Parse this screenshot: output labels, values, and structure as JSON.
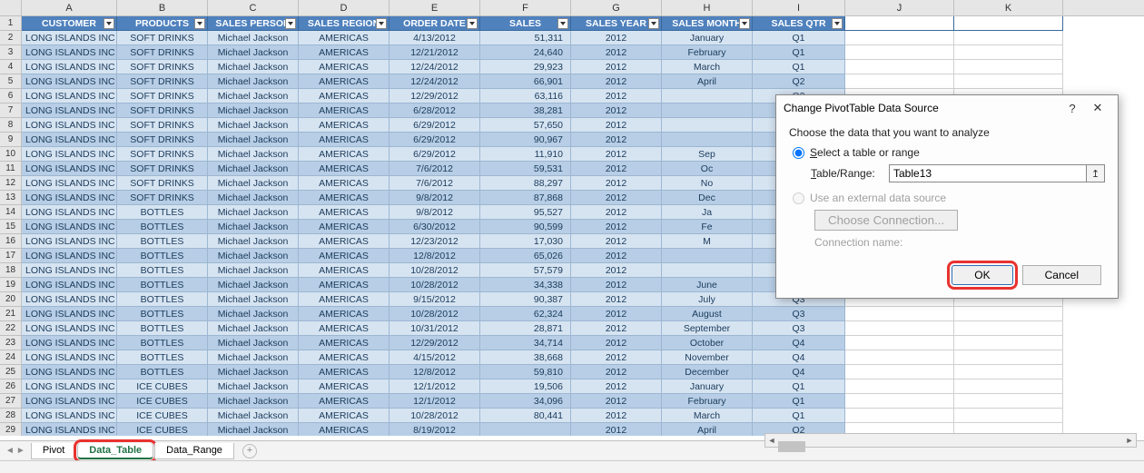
{
  "columnLetters": [
    "A",
    "B",
    "C",
    "D",
    "E",
    "F",
    "G",
    "H",
    "I",
    "J",
    "K"
  ],
  "columnWidths": {
    "A": 105,
    "B": 100,
    "C": 100,
    "D": 100,
    "E": 100,
    "F": 100,
    "G": 100,
    "H": 100,
    "I": 102,
    "J": 120,
    "K": 120
  },
  "headers": [
    "CUSTOMER",
    "PRODUCTS",
    "SALES PERSON",
    "SALES REGION",
    "ORDER DATE",
    "SALES",
    "SALES YEAR",
    "SALES MONTH",
    "SALES QTR"
  ],
  "rows": [
    [
      "LONG ISLANDS INC",
      "SOFT DRINKS",
      "Michael Jackson",
      "AMERICAS",
      "4/13/2012",
      "51,311",
      "2012",
      "January",
      "Q1"
    ],
    [
      "LONG ISLANDS INC",
      "SOFT DRINKS",
      "Michael Jackson",
      "AMERICAS",
      "12/21/2012",
      "24,640",
      "2012",
      "February",
      "Q1"
    ],
    [
      "LONG ISLANDS INC",
      "SOFT DRINKS",
      "Michael Jackson",
      "AMERICAS",
      "12/24/2012",
      "29,923",
      "2012",
      "March",
      "Q1"
    ],
    [
      "LONG ISLANDS INC",
      "SOFT DRINKS",
      "Michael Jackson",
      "AMERICAS",
      "12/24/2012",
      "66,901",
      "2012",
      "April",
      "Q2"
    ],
    [
      "LONG ISLANDS INC",
      "SOFT DRINKS",
      "Michael Jackson",
      "AMERICAS",
      "12/29/2012",
      "63,116",
      "2012",
      "",
      "Q2"
    ],
    [
      "LONG ISLANDS INC",
      "SOFT DRINKS",
      "Michael Jackson",
      "AMERICAS",
      "6/28/2012",
      "38,281",
      "2012",
      "",
      "Q2"
    ],
    [
      "LONG ISLANDS INC",
      "SOFT DRINKS",
      "Michael Jackson",
      "AMERICAS",
      "6/29/2012",
      "57,650",
      "2012",
      "",
      "Q3"
    ],
    [
      "LONG ISLANDS INC",
      "SOFT DRINKS",
      "Michael Jackson",
      "AMERICAS",
      "6/29/2012",
      "90,967",
      "2012",
      "",
      "Q3"
    ],
    [
      "LONG ISLANDS INC",
      "SOFT DRINKS",
      "Michael Jackson",
      "AMERICAS",
      "6/29/2012",
      "11,910",
      "2012",
      "Sep",
      "Q3"
    ],
    [
      "LONG ISLANDS INC",
      "SOFT DRINKS",
      "Michael Jackson",
      "AMERICAS",
      "7/6/2012",
      "59,531",
      "2012",
      "Oc",
      "Q4"
    ],
    [
      "LONG ISLANDS INC",
      "SOFT DRINKS",
      "Michael Jackson",
      "AMERICAS",
      "7/6/2012",
      "88,297",
      "2012",
      "No",
      "Q4"
    ],
    [
      "LONG ISLANDS INC",
      "SOFT DRINKS",
      "Michael Jackson",
      "AMERICAS",
      "9/8/2012",
      "87,868",
      "2012",
      "Dec",
      "Q4"
    ],
    [
      "LONG ISLANDS INC",
      "BOTTLES",
      "Michael Jackson",
      "AMERICAS",
      "9/8/2012",
      "95,527",
      "2012",
      "Ja",
      "Q1"
    ],
    [
      "LONG ISLANDS INC",
      "BOTTLES",
      "Michael Jackson",
      "AMERICAS",
      "6/30/2012",
      "90,599",
      "2012",
      "Fe",
      "Q1"
    ],
    [
      "LONG ISLANDS INC",
      "BOTTLES",
      "Michael Jackson",
      "AMERICAS",
      "12/23/2012",
      "17,030",
      "2012",
      "M",
      "Q1"
    ],
    [
      "LONG ISLANDS INC",
      "BOTTLES",
      "Michael Jackson",
      "AMERICAS",
      "12/8/2012",
      "65,026",
      "2012",
      "",
      "Q2"
    ],
    [
      "LONG ISLANDS INC",
      "BOTTLES",
      "Michael Jackson",
      "AMERICAS",
      "10/28/2012",
      "57,579",
      "2012",
      "",
      "Q2"
    ],
    [
      "LONG ISLANDS INC",
      "BOTTLES",
      "Michael Jackson",
      "AMERICAS",
      "10/28/2012",
      "34,338",
      "2012",
      "June",
      "Q2"
    ],
    [
      "LONG ISLANDS INC",
      "BOTTLES",
      "Michael Jackson",
      "AMERICAS",
      "9/15/2012",
      "90,387",
      "2012",
      "July",
      "Q3"
    ],
    [
      "LONG ISLANDS INC",
      "BOTTLES",
      "Michael Jackson",
      "AMERICAS",
      "10/28/2012",
      "62,324",
      "2012",
      "August",
      "Q3"
    ],
    [
      "LONG ISLANDS INC",
      "BOTTLES",
      "Michael Jackson",
      "AMERICAS",
      "10/31/2012",
      "28,871",
      "2012",
      "September",
      "Q3"
    ],
    [
      "LONG ISLANDS INC",
      "BOTTLES",
      "Michael Jackson",
      "AMERICAS",
      "12/29/2012",
      "34,714",
      "2012",
      "October",
      "Q4"
    ],
    [
      "LONG ISLANDS INC",
      "BOTTLES",
      "Michael Jackson",
      "AMERICAS",
      "4/15/2012",
      "38,668",
      "2012",
      "November",
      "Q4"
    ],
    [
      "LONG ISLANDS INC",
      "BOTTLES",
      "Michael Jackson",
      "AMERICAS",
      "12/8/2012",
      "59,810",
      "2012",
      "December",
      "Q4"
    ],
    [
      "LONG ISLANDS INC",
      "ICE CUBES",
      "Michael Jackson",
      "AMERICAS",
      "12/1/2012",
      "19,506",
      "2012",
      "January",
      "Q1"
    ],
    [
      "LONG ISLANDS INC",
      "ICE CUBES",
      "Michael Jackson",
      "AMERICAS",
      "12/1/2012",
      "34,096",
      "2012",
      "February",
      "Q1"
    ],
    [
      "LONG ISLANDS INC",
      "ICE CUBES",
      "Michael Jackson",
      "AMERICAS",
      "10/28/2012",
      "80,441",
      "2012",
      "March",
      "Q1"
    ],
    [
      "LONG ISLANDS INC",
      "ICE CUBES",
      "Michael Jackson",
      "AMERICAS",
      "8/19/2012",
      "",
      "2012",
      "April",
      "Q2"
    ]
  ],
  "numericCols": [
    5
  ],
  "bandColors": {
    "a": "#d6e4f2",
    "b": "#b7cee6"
  },
  "headerBg": "#4f81bd",
  "sheetTabs": {
    "items": [
      "Pivot",
      "Data_Table",
      "Data_Range"
    ],
    "activeIndex": 1,
    "highlightedIndex": 1
  },
  "dialog": {
    "title": "Change PivotTable Data Source",
    "prompt": "Choose the data that you want to analyze",
    "option1": "Select a table or range",
    "rangeLabel": "Table/Range:",
    "rangeValue": "Table13",
    "option2": "Use an external data source",
    "chooseConn": "Choose Connection...",
    "connName": "Connection name:",
    "ok": "OK",
    "cancel": "Cancel",
    "help": "?",
    "close": "✕"
  }
}
